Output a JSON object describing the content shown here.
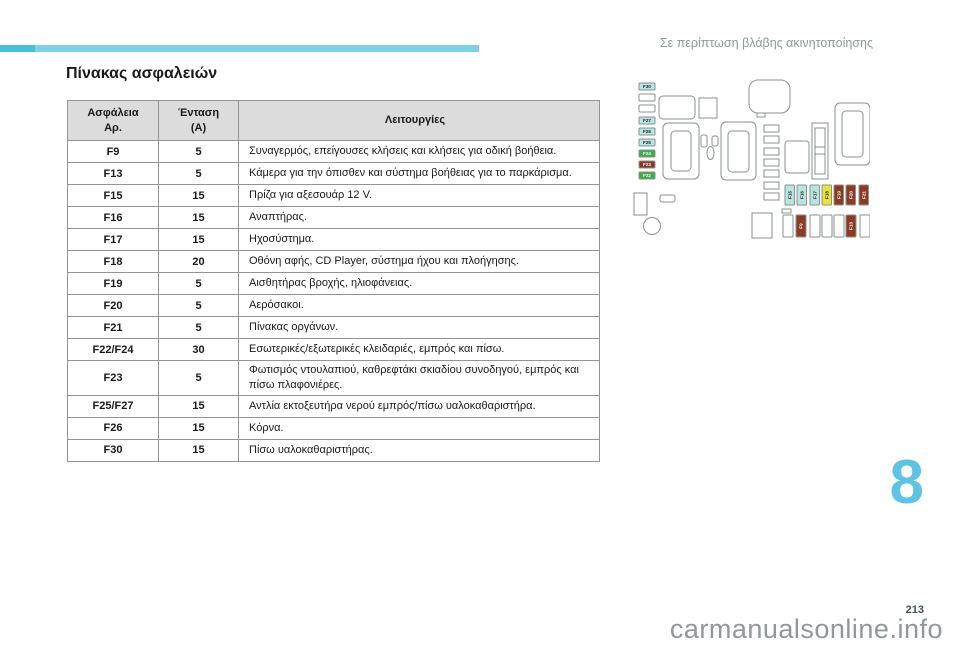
{
  "page": {
    "header_right": "Σε περίπτωση βλάβης ακινητοποίησης",
    "title": "Πίνακας ασφαλειών",
    "chapter_number": "8",
    "page_number": "213",
    "watermark": "carmanualsonline.info"
  },
  "table": {
    "columns": [
      "Ασφάλεια\nΑρ.",
      "Ένταση\n(A)",
      "Λειτουργίες"
    ],
    "rows": [
      {
        "fuse": "F9",
        "amp": "5",
        "function": "Συναγερμός, επείγουσες κλήσεις και κλήσεις για οδική βοήθεια."
      },
      {
        "fuse": "F13",
        "amp": "5",
        "function": "Κάμερα για την όπισθεν και σύστημα βοήθειας για το παρκάρισμα."
      },
      {
        "fuse": "F15",
        "amp": "15",
        "function": "Πρίζα για αξεσουάρ 12 V."
      },
      {
        "fuse": "F16",
        "amp": "15",
        "function": "Αναπτήρας."
      },
      {
        "fuse": "F17",
        "amp": "15",
        "function": "Ηχοσύστημα."
      },
      {
        "fuse": "F18",
        "amp": "20",
        "function": "Οθόνη αφής, CD Player, σύστημα ήχου και πλοήγησης."
      },
      {
        "fuse": "F19",
        "amp": "5",
        "function": "Αισθητήρας βροχής, ηλιοφάνειας."
      },
      {
        "fuse": "F20",
        "amp": "5",
        "function": "Αερόσακοι."
      },
      {
        "fuse": "F21",
        "amp": "5",
        "function": "Πίνακας οργάνων."
      },
      {
        "fuse": "F22/F24",
        "amp": "30",
        "function": "Εσωτερικές/εξωτερικές κλειδαριές, εμπρός και πίσω."
      },
      {
        "fuse": "F23",
        "amp": "5",
        "function": "Φωτισμός ντουλαπιού, καθρεφτάκι σκιαδίου συνοδηγού, εμπρός και πίσω πλαφονιέρες."
      },
      {
        "fuse": "F25/F27",
        "amp": "15",
        "function": "Αντλία εκτοξευτήρα νερού εμπρός/πίσω υαλοκαθαριστήρα."
      },
      {
        "fuse": "F26",
        "amp": "15",
        "function": "Κόρνα."
      },
      {
        "fuse": "F30",
        "amp": "15",
        "function": "Πίσω υαλοκαθαριστήρας."
      }
    ]
  },
  "diagram": {
    "colors": {
      "cyan": "#b9e5e0",
      "green": "#3fae49",
      "brown": "#8a3b22",
      "yellow": "#ece23e",
      "white": "#ffffff"
    },
    "label_column": [
      {
        "label": "F30",
        "color": "cyan"
      },
      {
        "label": "",
        "color": "white"
      },
      {
        "label": "",
        "color": "white"
      },
      {
        "label": "F27",
        "color": "cyan"
      },
      {
        "label": "F26",
        "color": "cyan"
      },
      {
        "label": "F25",
        "color": "cyan"
      },
      {
        "label": "F24",
        "color": "green"
      },
      {
        "label": "F23",
        "color": "brown"
      },
      {
        "label": "F22",
        "color": "green"
      }
    ],
    "fuse_row": [
      {
        "label": "F15",
        "color": "cyan"
      },
      {
        "label": "F16",
        "color": "cyan"
      },
      {
        "label": "F17",
        "color": "cyan"
      },
      {
        "label": "F18",
        "color": "yellow"
      },
      {
        "label": "F19",
        "color": "brown"
      },
      {
        "label": "F20",
        "color": "brown"
      },
      {
        "label": "F21",
        "color": "brown"
      }
    ],
    "bottom_row": [
      {
        "label": "",
        "color": "white"
      },
      {
        "label": "F9",
        "color": "brown"
      },
      {
        "label": "",
        "color": "white"
      },
      {
        "label": "",
        "color": "white"
      },
      {
        "label": "",
        "color": "white"
      },
      {
        "label": "F13",
        "color": "brown"
      },
      {
        "label": "",
        "color": "white"
      }
    ]
  }
}
